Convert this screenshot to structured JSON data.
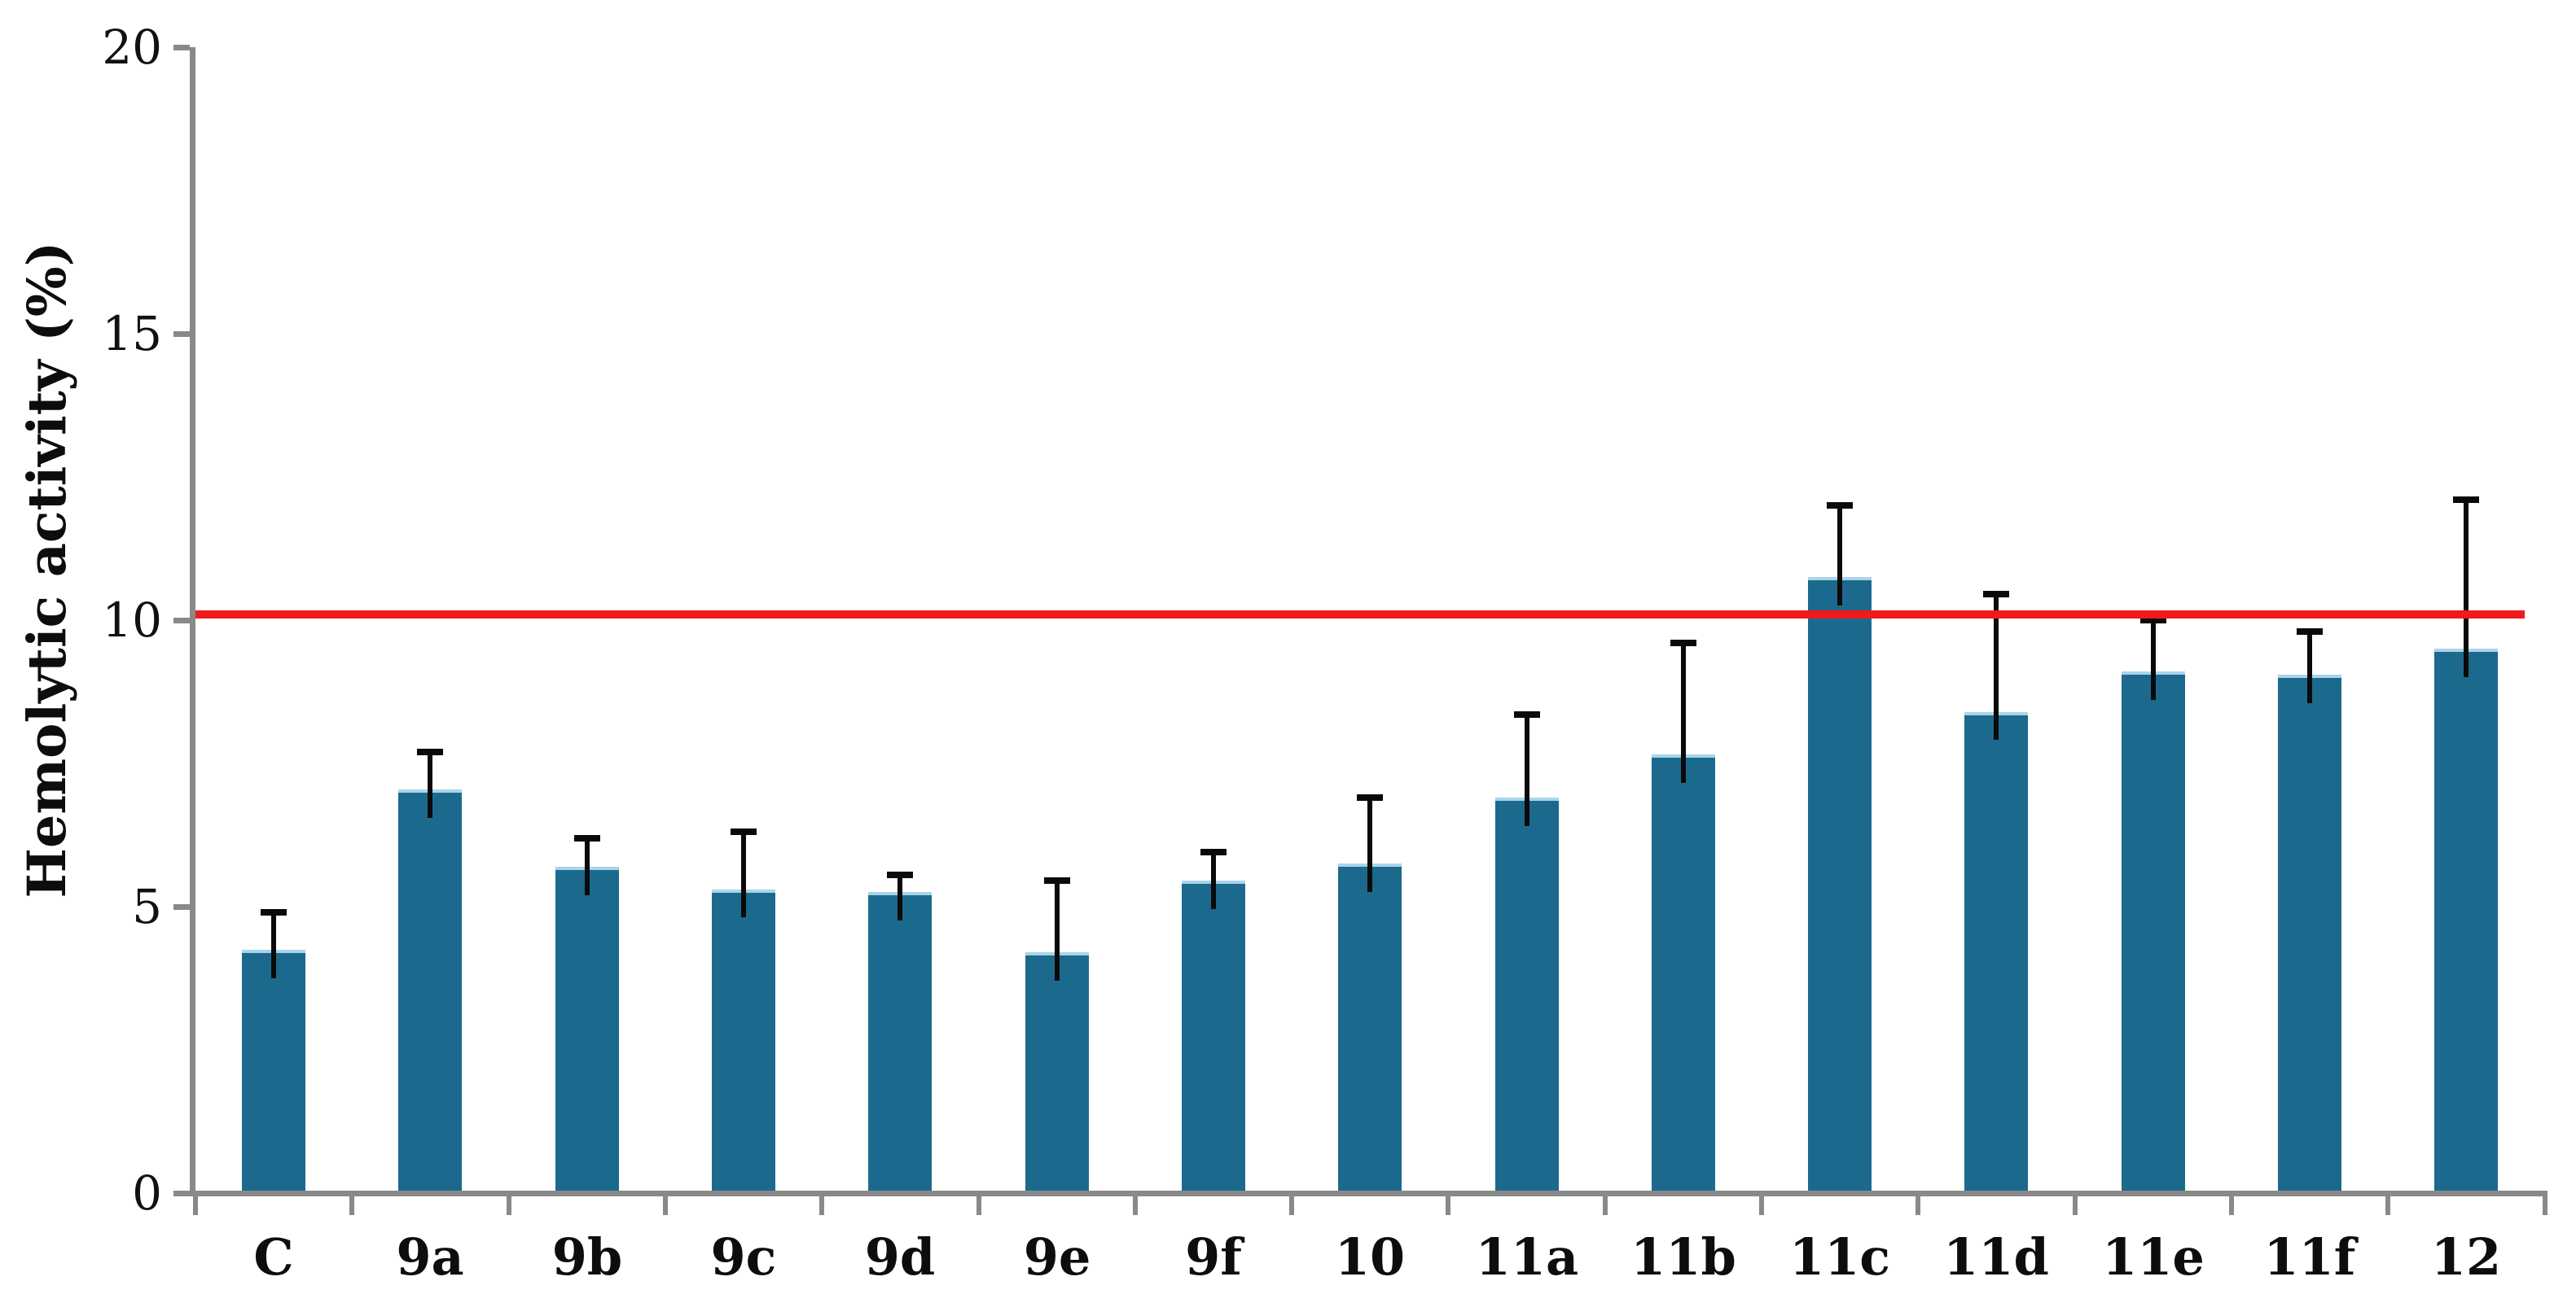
{
  "chart_data": {
    "type": "bar",
    "title": "",
    "xlabel": "",
    "ylabel": "Hemolytic activity (%)",
    "categories": [
      "C",
      "9a",
      "9b",
      "9c",
      "9d",
      "9e",
      "9f",
      "10",
      "11a",
      "11b",
      "11c",
      "11d",
      "11e",
      "11f",
      "12"
    ],
    "values": [
      4.25,
      7.05,
      5.7,
      5.3,
      5.25,
      4.2,
      5.45,
      5.75,
      6.9,
      7.65,
      10.75,
      8.4,
      9.1,
      9.05,
      9.5
    ],
    "error_plus": [
      0.65,
      0.65,
      0.5,
      1.0,
      0.3,
      1.25,
      0.5,
      1.15,
      1.45,
      1.95,
      1.25,
      2.05,
      0.9,
      0.75,
      2.6
    ],
    "ylim": [
      0,
      20
    ],
    "yticks": [
      0,
      5,
      10,
      15,
      20
    ],
    "grid": false,
    "legend": null,
    "reference_line": {
      "value": 10.1,
      "color": "#ef1a1a"
    },
    "colors": {
      "bar_fill": "#1b6a8e",
      "bar_top_edge": "#a9d5ea",
      "error_bar": "#0a0a0a",
      "axis": "#898989",
      "tick_label": "#111111"
    }
  }
}
